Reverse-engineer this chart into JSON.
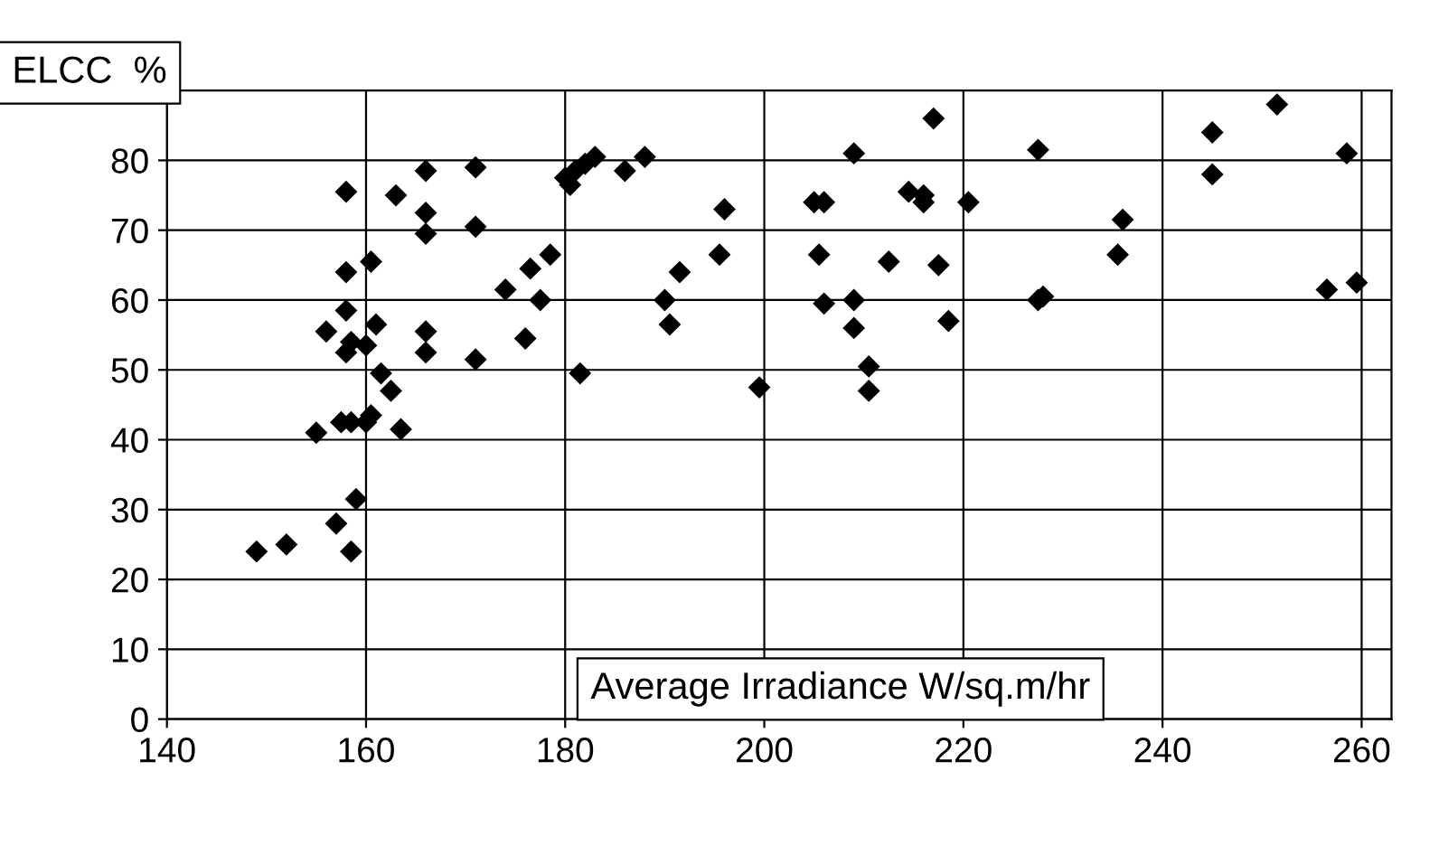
{
  "chart_data": {
    "type": "scatter",
    "xlabel": "Average Irradiance W/sq.m/hr",
    "ylabel": "ELCC  %",
    "x": [
      149,
      152,
      155,
      156,
      157,
      157.5,
      158,
      158,
      158,
      158,
      158.5,
      158.5,
      158.5,
      159,
      160,
      160,
      160.5,
      160.5,
      161,
      161.5,
      162.5,
      163,
      163.5,
      166,
      166,
      166,
      166,
      166,
      171,
      171,
      171,
      174,
      176,
      176.5,
      177.5,
      178.5,
      180,
      180.5,
      181,
      181.5,
      182,
      183,
      186,
      188,
      190,
      190.5,
      191.5,
      195.5,
      196,
      199.5,
      205,
      206,
      205.5,
      206,
      209,
      209,
      209,
      210.5,
      210.5,
      212.5,
      214.5,
      216,
      216,
      217,
      217.5,
      218.5,
      220.5,
      227.5,
      227.5,
      228,
      235.5,
      236,
      245,
      245,
      251.5,
      256.5,
      258.5,
      259.5
    ],
    "values": [
      24,
      25,
      41,
      55.5,
      28,
      42.5,
      52.5,
      75.5,
      64,
      58.5,
      42.5,
      54,
      24,
      31.5,
      53.5,
      42.5,
      65.5,
      43.5,
      56.5,
      49.5,
      47,
      75,
      41.5,
      78.5,
      69.5,
      72.5,
      55.5,
      52.5,
      79,
      70.5,
      51.5,
      61.5,
      54.5,
      64.5,
      60,
      66.5,
      77.5,
      76.5,
      78.5,
      49.5,
      79.5,
      80.5,
      78.5,
      80.5,
      60,
      56.5,
      64,
      66.5,
      73,
      47.5,
      74,
      74,
      66.5,
      59.5,
      81,
      60,
      56,
      50.5,
      47,
      65.5,
      75.5,
      75,
      74,
      86,
      65,
      57,
      74,
      81.5,
      60,
      60.5,
      66.5,
      71.5,
      84,
      78,
      88,
      61.5,
      81,
      62.5
    ],
    "color": "#000000",
    "marker": "diamond",
    "xlim": [
      140,
      263
    ],
    "xticks": [
      140,
      160,
      180,
      200,
      220,
      240,
      260
    ],
    "ylim": [
      0,
      90
    ],
    "yticks": [
      0,
      10,
      20,
      30,
      40,
      50,
      60,
      70,
      80
    ],
    "grid": true
  }
}
